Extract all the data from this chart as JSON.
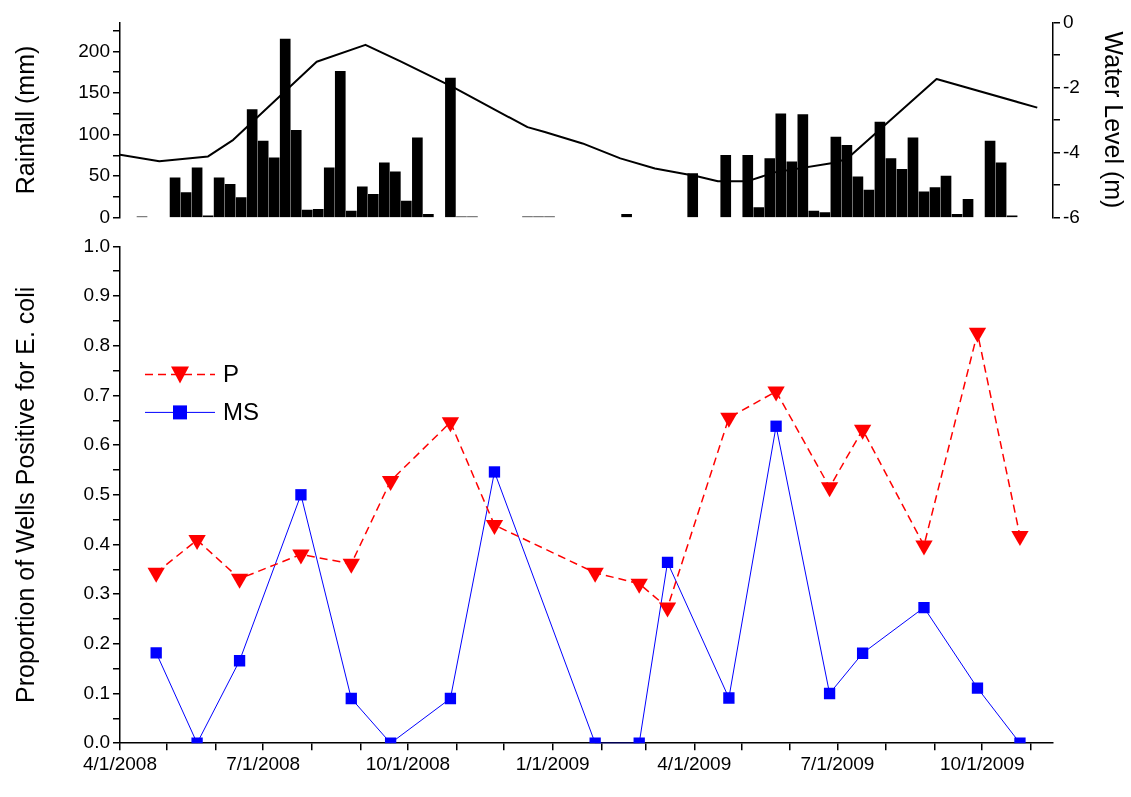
{
  "chart_data": [
    {
      "type": "bar",
      "ylabel": "Rainfall (mm)",
      "y2label": "Water Level (m)",
      "xlim": [
        "2008-04-01",
        "2009-11-15"
      ],
      "tick_labels": "y",
      "ylim": [
        0,
        235
      ],
      "yticks": [
        0,
        {
          "value": 25,
          "label": null
        },
        50,
        {
          "value": 75,
          "label": null
        },
        100,
        {
          "value": 125,
          "label": null
        },
        150,
        {
          "value": 175,
          "label": null
        },
        200,
        {
          "value": 225,
          "label": null
        }
      ],
      "y2lim": [
        -6,
        0
      ],
      "y2ticks": [
        -6,
        {
          "value": -5,
          "label": null
        },
        -4,
        {
          "value": -3,
          "label": null
        },
        -2,
        {
          "value": -1,
          "label": null
        },
        0
      ],
      "series": [
        {
          "type": "bar",
          "color": "#000000",
          "x": [
            "2008-04-15",
            "2008-05-06",
            "2008-05-13",
            "2008-05-20",
            "2008-05-27",
            "2008-06-03",
            "2008-06-10",
            "2008-06-17",
            "2008-06-24",
            "2008-07-01",
            "2008-07-08",
            "2008-07-15",
            "2008-07-22",
            "2008-07-29",
            "2008-08-05",
            "2008-08-12",
            "2008-08-19",
            "2008-08-26",
            "2008-09-02",
            "2008-09-09",
            "2008-09-16",
            "2008-09-23",
            "2008-09-30",
            "2008-10-07",
            "2008-10-14",
            "2008-10-28",
            "2008-11-04",
            "2008-11-11",
            "2008-12-16",
            "2008-12-23",
            "2008-12-30",
            "2009-02-17",
            "2009-03-31",
            "2009-04-21",
            "2009-05-05",
            "2009-05-12",
            "2009-05-19",
            "2009-05-26",
            "2009-06-02",
            "2009-06-09",
            "2009-06-16",
            "2009-06-23",
            "2009-06-30",
            "2009-07-07",
            "2009-07-14",
            "2009-07-21",
            "2009-07-28",
            "2009-08-04",
            "2009-08-11",
            "2009-08-18",
            "2009-08-25",
            "2009-09-01",
            "2009-09-08",
            "2009-09-15",
            "2009-09-22",
            "2009-10-06",
            "2009-10-13",
            "2009-10-20"
          ],
          "values": [
            1,
            48,
            30,
            60,
            2,
            48,
            40,
            24,
            130,
            92,
            72,
            215,
            105,
            9,
            10,
            60,
            176,
            8,
            37,
            28,
            66,
            55,
            20,
            96,
            4,
            168,
            1,
            1,
            1,
            1,
            1,
            4,
            53,
            75,
            75,
            12,
            71,
            125,
            67,
            124,
            8,
            6,
            97,
            87,
            49,
            33,
            115,
            71,
            58,
            96,
            31,
            36,
            50,
            4,
            22,
            92,
            66,
            2
          ]
        },
        {
          "type": "line",
          "axis": "y2",
          "color": "#000000",
          "x": [
            "2008-04-01",
            "2008-04-26",
            "2008-05-27",
            "2008-06-12",
            "2008-06-21",
            "2008-08-04",
            "2008-09-04",
            "2008-09-26",
            "2008-10-30",
            "2008-12-16",
            "2008-12-27",
            "2009-01-20",
            "2009-02-13",
            "2009-03-07",
            "2009-04-02",
            "2009-04-16",
            "2009-05-05",
            "2009-05-22",
            "2009-07-01",
            "2009-07-08",
            "2009-09-02",
            "2009-11-05"
          ],
          "values": [
            -4.07,
            -4.27,
            -4.12,
            -3.61,
            -3.2,
            -1.21,
            -0.69,
            -1.19,
            -2.0,
            -3.22,
            -3.37,
            -3.72,
            -4.18,
            -4.49,
            -4.72,
            -4.88,
            -4.88,
            -4.61,
            -4.3,
            -4.15,
            -1.74,
            -2.62
          ]
        }
      ]
    },
    {
      "type": "line",
      "ylabel": "Proportion of Wells Positive for E. coli",
      "legend": "top left",
      "xlim": [
        "2008-04-01",
        "2009-11-15"
      ],
      "xticks": [
        {
          "value": "2008-04-01",
          "label": "4/1/2008"
        },
        {
          "value": "2008-05-01",
          "label": null
        },
        {
          "value": "2008-06-01",
          "label": null
        },
        {
          "value": "2008-07-01",
          "label": "7/1/2008"
        },
        {
          "value": "2008-08-01",
          "label": null
        },
        {
          "value": "2008-09-01",
          "label": null
        },
        {
          "value": "2008-10-01",
          "label": "10/1/2008"
        },
        {
          "value": "2008-11-01",
          "label": null
        },
        {
          "value": "2008-12-01",
          "label": null
        },
        {
          "value": "2009-01-01",
          "label": "1/1/2009"
        },
        {
          "value": "2009-02-01",
          "label": null
        },
        {
          "value": "2009-03-01",
          "label": null
        },
        {
          "value": "2009-04-01",
          "label": "4/1/2009"
        },
        {
          "value": "2009-05-01",
          "label": null
        },
        {
          "value": "2009-06-01",
          "label": null
        },
        {
          "value": "2009-07-01",
          "label": "7/1/2009"
        },
        {
          "value": "2009-08-01",
          "label": null
        },
        {
          "value": "2009-09-01",
          "label": null
        },
        {
          "value": "2009-10-01",
          "label": "10/1/2009"
        },
        {
          "value": "2009-11-01",
          "label": null
        }
      ],
      "ylim": [
        0,
        1
      ],
      "yticks": [
        {
          "value": 0,
          "label": "0.0"
        },
        {
          "value": 0.05,
          "label": null
        },
        {
          "value": 0.1,
          "label": "0.1"
        },
        {
          "value": 0.15,
          "label": null
        },
        {
          "value": 0.2,
          "label": "0.2"
        },
        {
          "value": 0.25,
          "label": null
        },
        {
          "value": 0.3,
          "label": "0.3"
        },
        {
          "value": 0.35,
          "label": null
        },
        {
          "value": 0.4,
          "label": "0.4"
        },
        {
          "value": 0.45,
          "label": null
        },
        {
          "value": 0.5,
          "label": "0.5"
        },
        {
          "value": 0.55,
          "label": null
        },
        {
          "value": 0.6,
          "label": "0.6"
        },
        {
          "value": 0.65,
          "label": null
        },
        {
          "value": 0.7,
          "label": "0.7"
        },
        {
          "value": 0.75,
          "label": null
        },
        {
          "value": 0.8,
          "label": "0.8"
        },
        {
          "value": 0.85,
          "label": null
        },
        {
          "value": 0.9,
          "label": "0.9"
        },
        {
          "value": 0.95,
          "label": null
        },
        {
          "value": 1,
          "label": "1.0"
        }
      ],
      "x": [
        "2008-04-24",
        "2008-05-20",
        "2008-06-16",
        "2008-07-25",
        "2008-08-26",
        "2008-09-20",
        "2008-10-28",
        "2008-11-25",
        "2009-01-28",
        "2009-02-25",
        "2009-03-15",
        "2009-04-23",
        "2009-05-23",
        "2009-06-26",
        "2009-07-17",
        "2009-08-25",
        "2009-09-28",
        "2009-10-25"
      ],
      "series": [
        {
          "name": "P",
          "color": "#ff0000",
          "marker": "triangle",
          "line_style": "dashed",
          "values": [
            0.343,
            0.409,
            0.331,
            0.38,
            0.361,
            0.528,
            0.646,
            0.439,
            0.343,
            0.321,
            0.273,
            0.655,
            0.708,
            0.515,
            0.631,
            0.398,
            0.826,
            0.417
          ]
        },
        {
          "name": "MS",
          "color": "#0000ff",
          "marker": "square",
          "line_style": "solid",
          "values": [
            0.182,
            0,
            0.166,
            0.5,
            0.09,
            0,
            0.09,
            0.546,
            0,
            0,
            0.364,
            0.091,
            0.638,
            0.1,
            0.181,
            0.273,
            0.111,
            0
          ]
        }
      ]
    }
  ]
}
